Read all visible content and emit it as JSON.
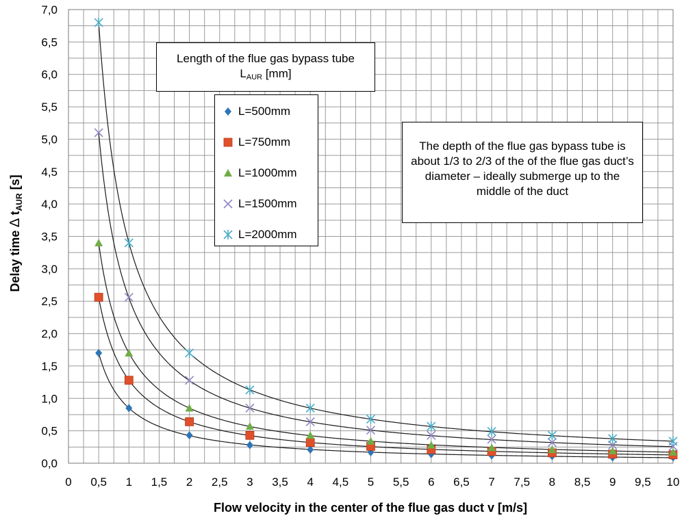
{
  "chart_data": {
    "type": "scatter",
    "xlabel": "Flow velocity in the center of the flue gas duct v [m/s]",
    "ylabel_main": "Delay time ",
    "ylabel_delta": "∆",
    "ylabel_t": " t",
    "ylabel_sub": "AUR",
    "ylabel_unit": " [s]",
    "xlim": [
      0,
      10
    ],
    "ylim": [
      0,
      7
    ],
    "xticks": [
      "0",
      "0,5",
      "1",
      "1,5",
      "2",
      "2,5",
      "3",
      "3,5",
      "4",
      "4,5",
      "5",
      "5,5",
      "6",
      "6,5",
      "7",
      "7,5",
      "8",
      "8,5",
      "9",
      "9,5",
      "10"
    ],
    "yticks": [
      "0,0",
      "0,5",
      "1,0",
      "1,5",
      "2,0",
      "2,5",
      "3,0",
      "3,5",
      "4,0",
      "4,5",
      "5,0",
      "5,5",
      "6,0",
      "6,5",
      "7,0"
    ],
    "grid": true,
    "legend_position": "upper-center",
    "x": [
      0.5,
      1,
      2,
      3,
      4,
      5,
      6,
      7,
      8,
      9,
      10
    ],
    "series": [
      {
        "name": "L=500mm",
        "marker": "diamond",
        "color": "#2e75b6",
        "values": [
          1.7,
          0.85,
          0.43,
          0.28,
          0.21,
          0.17,
          0.14,
          0.12,
          0.11,
          0.09,
          0.09
        ]
      },
      {
        "name": "L=750mm",
        "marker": "square",
        "color": "#e0502a",
        "values": [
          2.56,
          1.28,
          0.64,
          0.43,
          0.32,
          0.26,
          0.21,
          0.18,
          0.16,
          0.14,
          0.13
        ]
      },
      {
        "name": "L=1000mm",
        "marker": "triangle",
        "color": "#70ad47",
        "values": [
          3.4,
          1.7,
          0.85,
          0.57,
          0.43,
          0.34,
          0.28,
          0.24,
          0.21,
          0.19,
          0.17
        ]
      },
      {
        "name": "L=1500mm",
        "marker": "x",
        "color": "#8f86c6",
        "values": [
          5.1,
          2.56,
          1.28,
          0.85,
          0.64,
          0.51,
          0.43,
          0.37,
          0.32,
          0.28,
          0.26
        ]
      },
      {
        "name": "L=2000mm",
        "marker": "star",
        "color": "#4bacc6",
        "values": [
          6.8,
          3.4,
          1.7,
          1.13,
          0.85,
          0.68,
          0.57,
          0.49,
          0.43,
          0.38,
          0.34
        ]
      }
    ],
    "annotations": {
      "title_line1": "Length of the flue gas bypass tube",
      "title_line2_main": "L",
      "title_line2_sub": "AUR",
      "title_line2_unit": " [mm]",
      "note": "The depth of the flue gas bypass tube is about 1/3 to 2/3 of the of the flue gas duct’s diameter – ideally submerge up to the middle of the duct"
    }
  }
}
